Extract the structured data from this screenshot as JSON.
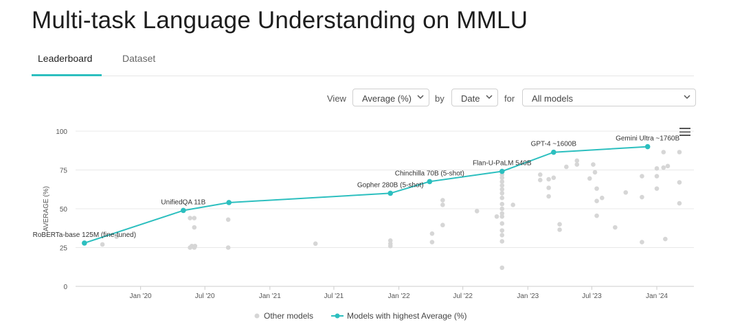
{
  "page": {
    "title": "Multi-task Language Understanding on MMLU"
  },
  "tabs": [
    {
      "label": "Leaderboard",
      "active": true
    },
    {
      "label": "Dataset",
      "active": false
    }
  ],
  "controls": {
    "view_label": "View",
    "view_value": "Average (%)",
    "by_label": "by",
    "by_value": "Date",
    "for_label": "for",
    "for_value": "All models"
  },
  "icons": {
    "chart_menu": "hamburger-menu-icon",
    "dropdown": "chevron-down-icon"
  },
  "colors": {
    "accent": "#2cbfbf",
    "other_models": "#d6d6d6"
  },
  "chart_data": {
    "type": "scatter",
    "ylabel": "AVERAGE (%)",
    "ylim": [
      0,
      100
    ],
    "yticks": [
      0,
      25,
      50,
      75,
      100
    ],
    "xticks": [
      "Jan '20",
      "Jul '20",
      "Jan '21",
      "Jul '21",
      "Jan '22",
      "Jul '22",
      "Jan '23",
      "Jul '23",
      "Jan '24"
    ],
    "xlim": [
      "2019-07-01",
      "2024-04-15"
    ],
    "grid": true,
    "legend_position": "bottom",
    "legend": [
      "Other models",
      "Models with highest Average (%)"
    ],
    "series": [
      {
        "name": "Models with highest Average (%)",
        "points": [
          {
            "x": "2019-07-26",
            "y": 27.9,
            "label": "RoBERTa-base 125M (fine-tuned)"
          },
          {
            "x": "2020-05-01",
            "y": 48.9,
            "label": "UnifiedQA 11B"
          },
          {
            "x": "2020-09-07",
            "y": 54.0,
            "label": ""
          },
          {
            "x": "2021-12-08",
            "y": 60.0,
            "label": "Gopher 280B (5-shot)"
          },
          {
            "x": "2022-03-29",
            "y": 67.5,
            "label": "Chinchilla 70B (5-shot)"
          },
          {
            "x": "2022-10-20",
            "y": 74.1,
            "label": "Flan-U-PaLM 540B"
          },
          {
            "x": "2023-03-15",
            "y": 86.4,
            "label": "GPT-4 ~1600B"
          },
          {
            "x": "2023-12-06",
            "y": 90.0,
            "label": "Gemini Ultra ~1760B"
          }
        ]
      },
      {
        "name": "Other models",
        "points": [
          {
            "x": "2019-09-15",
            "y": 27
          },
          {
            "x": "2019-10-25",
            "y": 32
          },
          {
            "x": "2020-05-20",
            "y": 25
          },
          {
            "x": "2020-05-25",
            "y": 26
          },
          {
            "x": "2020-06-01",
            "y": 25
          },
          {
            "x": "2020-06-03",
            "y": 26
          },
          {
            "x": "2020-05-20",
            "y": 44
          },
          {
            "x": "2020-06-01",
            "y": 44
          },
          {
            "x": "2020-06-01",
            "y": 38
          },
          {
            "x": "2020-09-05",
            "y": 43
          },
          {
            "x": "2020-09-05",
            "y": 25
          },
          {
            "x": "2021-05-10",
            "y": 27.5
          },
          {
            "x": "2021-12-08",
            "y": 29.5
          },
          {
            "x": "2021-12-08",
            "y": 27.5
          },
          {
            "x": "2021-12-08",
            "y": 26
          },
          {
            "x": "2022-04-05",
            "y": 34
          },
          {
            "x": "2022-04-05",
            "y": 28.5
          },
          {
            "x": "2022-05-05",
            "y": 55.5
          },
          {
            "x": "2022-05-05",
            "y": 52.5
          },
          {
            "x": "2022-05-05",
            "y": 39.5
          },
          {
            "x": "2022-08-10",
            "y": 48.5
          },
          {
            "x": "2022-10-05",
            "y": 45
          },
          {
            "x": "2022-10-20",
            "y": 12
          },
          {
            "x": "2022-10-20",
            "y": 29
          },
          {
            "x": "2022-10-20",
            "y": 33
          },
          {
            "x": "2022-10-20",
            "y": 36
          },
          {
            "x": "2022-10-20",
            "y": 40.5
          },
          {
            "x": "2022-10-20",
            "y": 45
          },
          {
            "x": "2022-10-20",
            "y": 47
          },
          {
            "x": "2022-10-20",
            "y": 50
          },
          {
            "x": "2022-10-20",
            "y": 53
          },
          {
            "x": "2022-10-20",
            "y": 57
          },
          {
            "x": "2022-10-20",
            "y": 60
          },
          {
            "x": "2022-10-20",
            "y": 62.5
          },
          {
            "x": "2022-10-20",
            "y": 65
          },
          {
            "x": "2022-10-20",
            "y": 67.5
          },
          {
            "x": "2022-10-20",
            "y": 70
          },
          {
            "x": "2022-10-20",
            "y": 72
          },
          {
            "x": "2022-11-20",
            "y": 52.5
          },
          {
            "x": "2023-02-05",
            "y": 72
          },
          {
            "x": "2023-02-05",
            "y": 68.5
          },
          {
            "x": "2023-03-01",
            "y": 69
          },
          {
            "x": "2023-03-01",
            "y": 63.5
          },
          {
            "x": "2023-03-01",
            "y": 58
          },
          {
            "x": "2023-03-15",
            "y": 70
          },
          {
            "x": "2023-04-01",
            "y": 40
          },
          {
            "x": "2023-04-01",
            "y": 36.5
          },
          {
            "x": "2023-04-20",
            "y": 77
          },
          {
            "x": "2023-05-20",
            "y": 81
          },
          {
            "x": "2023-05-20",
            "y": 78.5
          },
          {
            "x": "2023-06-25",
            "y": 69.5
          },
          {
            "x": "2023-07-05",
            "y": 78.5
          },
          {
            "x": "2023-07-10",
            "y": 73.5
          },
          {
            "x": "2023-07-15",
            "y": 63
          },
          {
            "x": "2023-07-15",
            "y": 55
          },
          {
            "x": "2023-07-15",
            "y": 45.5
          },
          {
            "x": "2023-07-30",
            "y": 57
          },
          {
            "x": "2023-09-05",
            "y": 38
          },
          {
            "x": "2023-10-05",
            "y": 60.5
          },
          {
            "x": "2023-11-20",
            "y": 71
          },
          {
            "x": "2023-11-20",
            "y": 57.5
          },
          {
            "x": "2023-11-20",
            "y": 28.5
          },
          {
            "x": "2024-01-01",
            "y": 76
          },
          {
            "x": "2024-01-01",
            "y": 71
          },
          {
            "x": "2024-01-01",
            "y": 63
          },
          {
            "x": "2024-01-20",
            "y": 86.5
          },
          {
            "x": "2024-01-20",
            "y": 76.5
          },
          {
            "x": "2024-01-25",
            "y": 30.5
          },
          {
            "x": "2024-02-01",
            "y": 77.5
          },
          {
            "x": "2024-03-05",
            "y": 86.5
          },
          {
            "x": "2024-03-05",
            "y": 67
          },
          {
            "x": "2024-03-05",
            "y": 53.5
          }
        ]
      }
    ]
  }
}
